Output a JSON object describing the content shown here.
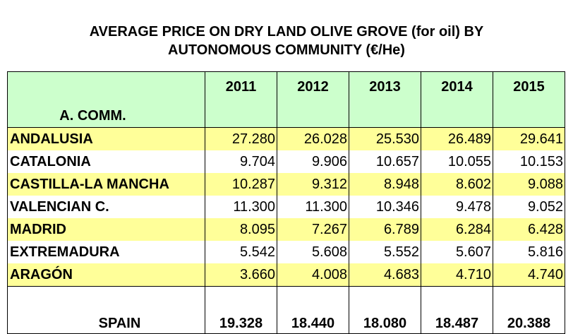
{
  "title_line1": "AVERAGE PRICE ON DRY LAND OLIVE GROVE (for oil)  BY",
  "title_line2": "AUTONOMOUS COMMUNITY (€/He)",
  "colors": {
    "header_bg": "#ccffcc",
    "highlight_bg": "#ffff99"
  },
  "chart_data": {
    "type": "table",
    "title": "AVERAGE PRICE ON DRY LAND OLIVE GROVE (for oil)  BY AUTONOMOUS COMMUNITY (€/He)",
    "row_header": "A. COMM.",
    "columns": [
      "2011",
      "2012",
      "2013",
      "2014",
      "2015"
    ],
    "rows": [
      {
        "name": "ANDALUSIA",
        "values": [
          "27.280",
          "26.028",
          "25.530",
          "26.489",
          "29.641"
        ],
        "highlight": true
      },
      {
        "name": "CATALONIA",
        "values": [
          "9.704",
          "9.906",
          "10.657",
          "10.055",
          "10.153"
        ],
        "highlight": false
      },
      {
        "name": "CASTILLA-LA MANCHA",
        "values": [
          "10.287",
          "9.312",
          "8.948",
          "8.602",
          "9.088"
        ],
        "highlight": true
      },
      {
        "name": "VALENCIAN C.",
        "values": [
          "11.300",
          "11.300",
          "10.346",
          "9.478",
          "9.052"
        ],
        "highlight": false
      },
      {
        "name": "MADRID",
        "values": [
          "8.095",
          "7.267",
          "6.789",
          "6.284",
          "6.428"
        ],
        "highlight": true
      },
      {
        "name": "EXTREMADURA",
        "values": [
          "5.542",
          "5.608",
          "5.552",
          "5.607",
          "5.816"
        ],
        "highlight": false
      },
      {
        "name": "ARAGÓN",
        "values": [
          "3.660",
          "4.008",
          "4.683",
          "4.710",
          "4.740"
        ],
        "highlight": true
      }
    ],
    "total": {
      "name": "SPAIN",
      "values": [
        "19.328",
        "18.440",
        "18.080",
        "18.487",
        "20.388"
      ]
    }
  }
}
